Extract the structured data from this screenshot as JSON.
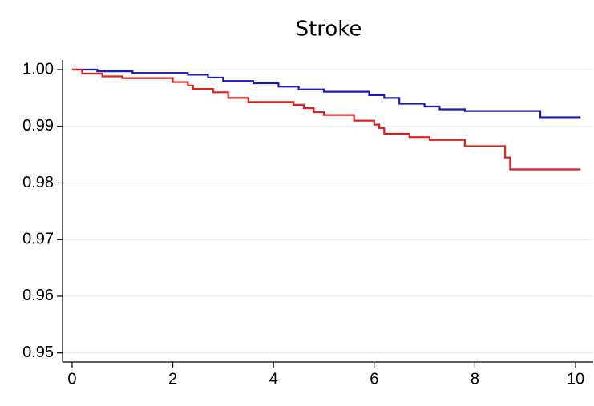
{
  "chart_data": {
    "type": "line",
    "step": true,
    "title": "Stroke",
    "xlim": [
      -0.19,
      10.35
    ],
    "xticks": [
      0,
      2,
      4,
      6,
      8,
      10
    ],
    "ylim": [
      0.9484,
      1.0017
    ],
    "yticks": [
      {
        "value": 1.0,
        "label": "1.00"
      },
      0.99,
      0.98,
      0.97,
      0.96,
      0.95
    ],
    "grid": true,
    "series": [
      {
        "color": "#1a1ab8",
        "x": [
          0,
          0.5,
          1.2,
          2.3,
          2.7,
          3.0,
          3.6,
          4.1,
          4.5,
          5.0,
          5.9,
          6.2,
          6.5,
          7.0,
          7.3,
          7.8,
          9.3,
          10.1
        ],
        "values": [
          1.0,
          0.9997,
          0.9994,
          0.9991,
          0.9986,
          0.998,
          0.9976,
          0.997,
          0.9965,
          0.9961,
          0.9955,
          0.995,
          0.994,
          0.9935,
          0.993,
          0.9927,
          0.9916,
          0.9916
        ]
      },
      {
        "color": "#e0201b",
        "x": [
          0,
          0.2,
          0.6,
          1.0,
          2.0,
          2.3,
          2.4,
          2.8,
          3.1,
          3.5,
          4.4,
          4.6,
          4.8,
          5.0,
          5.6,
          6.0,
          6.1,
          6.2,
          6.7,
          7.1,
          7.8,
          8.6,
          8.7,
          10.1
        ],
        "values": [
          1.0,
          0.9993,
          0.9988,
          0.9985,
          0.9978,
          0.9972,
          0.9966,
          0.996,
          0.995,
          0.9943,
          0.9938,
          0.9932,
          0.9925,
          0.992,
          0.991,
          0.9903,
          0.9897,
          0.9887,
          0.9881,
          0.9876,
          0.9865,
          0.9845,
          0.9824,
          0.9824
        ]
      }
    ]
  }
}
